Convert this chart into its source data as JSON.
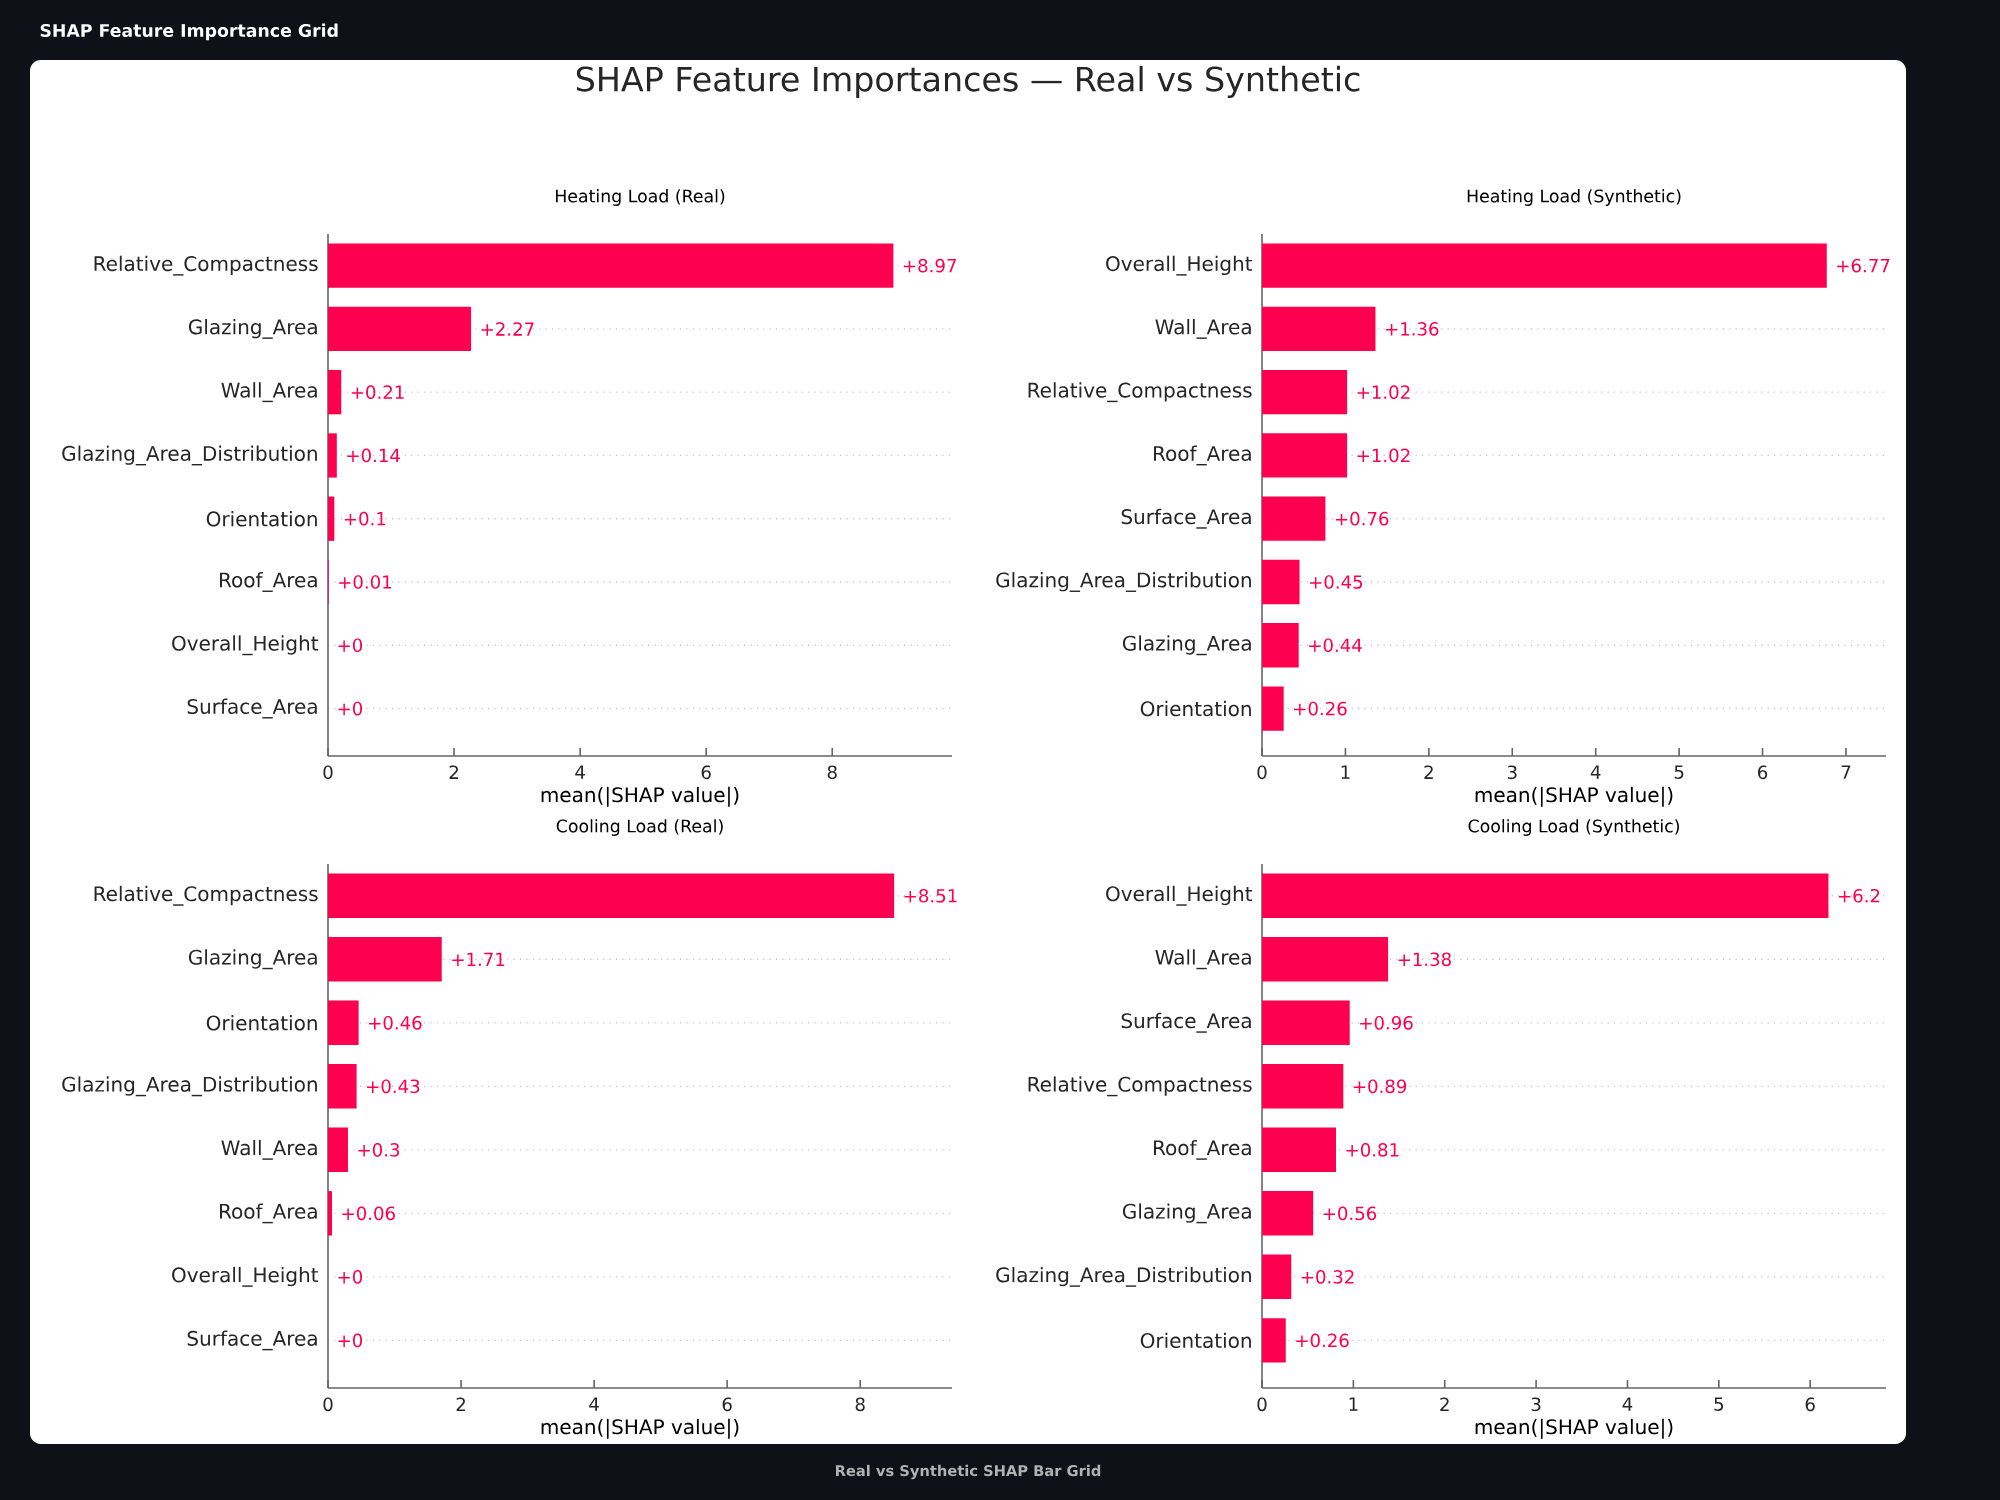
{
  "chart_data": [
    {
      "type": "other",
      "title": "SHAP Feature Importances — Real vs Synthetic",
      "annotations": [
        "SHAP Feature Importance Grid",
        "Real vs Synthetic SHAP Bar Grid"
      ]
    },
    {
      "type": "bar",
      "orientation": "horizontal",
      "title": "Heating Load (Real)",
      "xlabel": "mean(|SHAP value|)",
      "color": "#ff0051",
      "grid": "y",
      "categories": [
        "Relative_Compactness",
        "Glazing_Area",
        "Wall_Area",
        "Glazing_Area_Distribution",
        "Orientation",
        "Roof_Area",
        "Overall_Height",
        "Surface_Area"
      ],
      "values": [
        8.97,
        2.27,
        0.21,
        0.14,
        0.1,
        0.01,
        0,
        0
      ],
      "value_labels": [
        "+8.97",
        "+2.27",
        "+0.21",
        "+0.14",
        "+0.1",
        "+0.01",
        "+0",
        "+0"
      ],
      "xlim": [
        0,
        9.9
      ],
      "xticks": [
        0,
        2,
        4,
        6,
        8
      ]
    },
    {
      "type": "bar",
      "orientation": "horizontal",
      "title": "Heating Load (Synthetic)",
      "xlabel": "mean(|SHAP value|)",
      "color": "#ff0051",
      "grid": "y",
      "categories": [
        "Overall_Height",
        "Wall_Area",
        "Relative_Compactness",
        "Roof_Area",
        "Surface_Area",
        "Glazing_Area_Distribution",
        "Glazing_Area",
        "Orientation"
      ],
      "values": [
        6.77,
        1.36,
        1.02,
        1.02,
        0.76,
        0.45,
        0.44,
        0.26
      ],
      "value_labels": [
        "+6.77",
        "+1.36",
        "+1.02",
        "+1.02",
        "+0.76",
        "+0.45",
        "+0.44",
        "+0.26"
      ],
      "xlim": [
        0,
        7.48
      ],
      "xticks": [
        0,
        1,
        2,
        3,
        4,
        5,
        6,
        7
      ]
    },
    {
      "type": "bar",
      "orientation": "horizontal",
      "title": "Cooling Load (Real)",
      "xlabel": "mean(|SHAP value|)",
      "color": "#ff0051",
      "grid": "y",
      "categories": [
        "Relative_Compactness",
        "Glazing_Area",
        "Orientation",
        "Glazing_Area_Distribution",
        "Wall_Area",
        "Roof_Area",
        "Overall_Height",
        "Surface_Area"
      ],
      "values": [
        8.51,
        1.71,
        0.46,
        0.43,
        0.3,
        0.06,
        0,
        0
      ],
      "value_labels": [
        "+8.51",
        "+1.71",
        "+0.46",
        "+0.43",
        "+0.3",
        "+0.06",
        "+0",
        "+0"
      ],
      "xlim": [
        0,
        9.38
      ],
      "xticks": [
        0,
        2,
        4,
        6,
        8
      ]
    },
    {
      "type": "bar",
      "orientation": "horizontal",
      "title": "Cooling Load (Synthetic)",
      "xlabel": "mean(|SHAP value|)",
      "color": "#ff0051",
      "grid": "y",
      "categories": [
        "Overall_Height",
        "Wall_Area",
        "Surface_Area",
        "Relative_Compactness",
        "Roof_Area",
        "Glazing_Area",
        "Glazing_Area_Distribution",
        "Orientation"
      ],
      "values": [
        6.2,
        1.38,
        0.96,
        0.89,
        0.81,
        0.56,
        0.32,
        0.26
      ],
      "value_labels": [
        "+6.2",
        "+1.38",
        "+0.96",
        "+0.89",
        "+0.81",
        "+0.56",
        "+0.32",
        "+0.26"
      ],
      "xlim": [
        0,
        6.83
      ],
      "xticks": [
        0,
        1,
        2,
        3,
        4,
        5,
        6
      ]
    }
  ]
}
